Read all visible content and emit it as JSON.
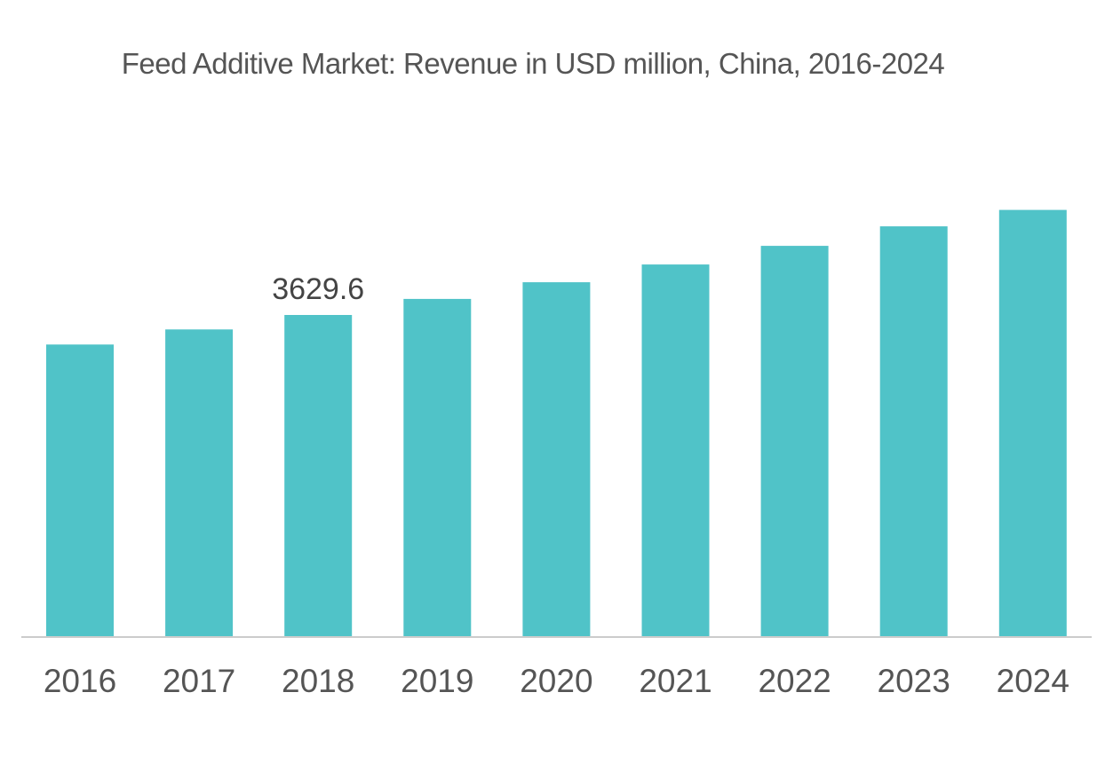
{
  "chart_data": {
    "type": "bar",
    "title": "Feed Additive Market: Revenue in USD million, China, 2016-2024",
    "categories": [
      "2016",
      "2017",
      "2018",
      "2019",
      "2020",
      "2021",
      "2022",
      "2023",
      "2024"
    ],
    "series": [
      {
        "values": [
          3297,
          3467,
          3629.6,
          3811,
          3999,
          4199,
          4409,
          4629,
          4814
        ]
      }
    ],
    "data_labels": [
      {
        "category": "2018",
        "text": "3629.6"
      }
    ],
    "xlabel": "",
    "ylabel": "",
    "ylim": [
      0,
      5200
    ],
    "y_axis_visible": false,
    "grid": false,
    "legend": "none",
    "colors": {
      "bar": "#50C3C8",
      "axis": "#CCCCCC",
      "text": "#555555"
    }
  }
}
